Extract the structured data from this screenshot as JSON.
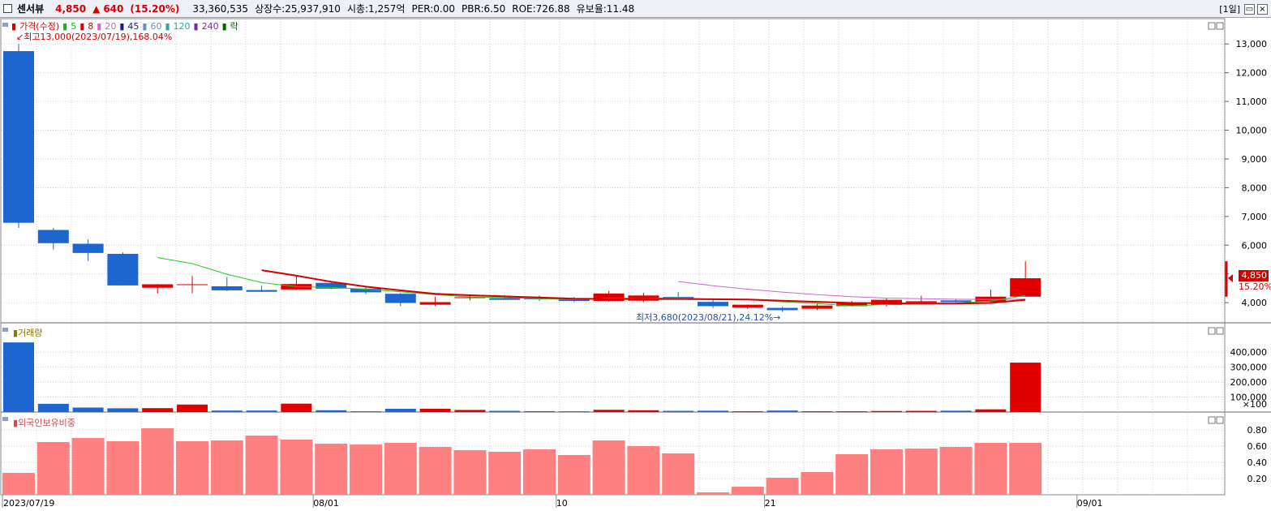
{
  "header": {
    "name": "센서뷰",
    "price": "4,850",
    "change_arrow": "▲",
    "change": "640",
    "change_pct": "(15.20%)",
    "volume": "33,360,535",
    "listed": "상장수:25,937,910",
    "mktcap": "시총:1,257억",
    "per": "PER:0.00",
    "pbr": "PBR:6.50",
    "roe": "ROE:726.88",
    "float": "유보율:11.48",
    "period": "[1일]"
  },
  "legend": [
    {
      "label": "가격(수정)",
      "color": "#d40000"
    },
    {
      "label": "5",
      "color": "#22aa22"
    },
    {
      "label": "8",
      "color": "#d40000"
    },
    {
      "label": "20",
      "color": "#cc66cc"
    },
    {
      "label": "45",
      "color": "#1a1a8a"
    },
    {
      "label": "60",
      "color": "#6a8acb"
    },
    {
      "label": "120",
      "color": "#2aa6a6"
    },
    {
      "label": "240",
      "color": "#7a2aa6"
    },
    {
      "label": "락",
      "color": "#006600"
    }
  ],
  "annotations": {
    "max": "최고13,000(2023/07/19),168.04%",
    "min": "최저3,680(2023/08/21),24.12%",
    "current_price": "4,850",
    "current_pct": "15.20%"
  },
  "panels": {
    "volume_title": "거래량",
    "foreign_title": "외국인보유비중"
  },
  "colors": {
    "up": "#e00000",
    "down": "#1d66cf",
    "foreign": "#ff8080",
    "ma5": "#22cc22",
    "ma8": "#d40000",
    "ma20": "#cc66cc"
  },
  "chart_data": {
    "type": "candlestick",
    "x_ticks": [
      {
        "i": 0,
        "label": "2023/07/19"
      },
      {
        "i": 9,
        "label": "08/01"
      },
      {
        "i": 16,
        "label": "10"
      },
      {
        "i": 22,
        "label": "21"
      },
      {
        "i": 31,
        "label": "09/01"
      }
    ],
    "price_axis": {
      "ticks": [
        4000,
        5000,
        6000,
        7000,
        8000,
        9000,
        10000,
        11000,
        12000,
        13000
      ],
      "labels": [
        "4,000",
        "5,000",
        "6,000",
        "7,000",
        "8,000",
        "9,000",
        "10,000",
        "11,000",
        "12,000",
        "13,000"
      ],
      "range": [
        3300,
        13400
      ]
    },
    "volume_axis": {
      "ticks": [
        100000,
        200000,
        300000,
        400000
      ],
      "labels": [
        "100,000",
        "200,000",
        "300,000",
        "400,000"
      ],
      "unit": "×100",
      "range": [
        0,
        520000
      ]
    },
    "foreign_axis": {
      "ticks": [
        0.2,
        0.4,
        0.6,
        0.8
      ],
      "labels": [
        "0.20",
        "0.40",
        "0.60",
        "0.80"
      ],
      "range": [
        0,
        1.0
      ]
    },
    "candles": [
      {
        "o": 12750,
        "h": 13000,
        "l": 6600,
        "c": 6780
      },
      {
        "o": 6530,
        "h": 6600,
        "l": 5850,
        "c": 6070
      },
      {
        "o": 6050,
        "h": 6200,
        "l": 5450,
        "c": 5730
      },
      {
        "o": 5700,
        "h": 5750,
        "l": 4600,
        "c": 4600
      },
      {
        "o": 4520,
        "h": 4650,
        "l": 4320,
        "c": 4640
      },
      {
        "o": 4640,
        "h": 4930,
        "l": 4330,
        "c": 4640
      },
      {
        "o": 4570,
        "h": 4890,
        "l": 4410,
        "c": 4430
      },
      {
        "o": 4440,
        "h": 4590,
        "l": 4370,
        "c": 4380
      },
      {
        "o": 4460,
        "h": 4960,
        "l": 4440,
        "c": 4650
      },
      {
        "o": 4690,
        "h": 4750,
        "l": 4470,
        "c": 4490
      },
      {
        "o": 4490,
        "h": 4560,
        "l": 4300,
        "c": 4360
      },
      {
        "o": 4310,
        "h": 4340,
        "l": 3880,
        "c": 3990
      },
      {
        "o": 3930,
        "h": 4210,
        "l": 3880,
        "c": 4020
      },
      {
        "o": 4160,
        "h": 4240,
        "l": 4080,
        "c": 4190
      },
      {
        "o": 4160,
        "h": 4270,
        "l": 4100,
        "c": 4100
      },
      {
        "o": 4170,
        "h": 4250,
        "l": 4060,
        "c": 4120
      },
      {
        "o": 4110,
        "h": 4200,
        "l": 4020,
        "c": 4060
      },
      {
        "o": 4060,
        "h": 4410,
        "l": 4040,
        "c": 4320
      },
      {
        "o": 4070,
        "h": 4350,
        "l": 4020,
        "c": 4250
      },
      {
        "o": 4200,
        "h": 4370,
        "l": 4150,
        "c": 4130
      },
      {
        "o": 4030,
        "h": 4110,
        "l": 3820,
        "c": 3880
      },
      {
        "o": 3830,
        "h": 3930,
        "l": 3780,
        "c": 3930
      },
      {
        "o": 3820,
        "h": 3850,
        "l": 3680,
        "c": 3740
      },
      {
        "o": 3790,
        "h": 3960,
        "l": 3740,
        "c": 3900
      },
      {
        "o": 3880,
        "h": 4060,
        "l": 3870,
        "c": 4010
      },
      {
        "o": 3920,
        "h": 4150,
        "l": 3860,
        "c": 4100
      },
      {
        "o": 4000,
        "h": 4240,
        "l": 3970,
        "c": 4050
      },
      {
        "o": 4080,
        "h": 4120,
        "l": 4010,
        "c": 4020
      },
      {
        "o": 4030,
        "h": 4460,
        "l": 4000,
        "c": 4210
      },
      {
        "o": 4210,
        "h": 5440,
        "l": 4210,
        "c": 4850
      }
    ],
    "ma5": [
      null,
      null,
      null,
      null,
      5570,
      5360,
      4990,
      4700,
      4560,
      4530,
      4470,
      4380,
      4280,
      4200,
      4180,
      4140,
      4110,
      4160,
      4150,
      4170,
      4120,
      4110,
      4030,
      3970,
      3890,
      3940,
      3960,
      3980,
      4060,
      4250
    ],
    "ma8": [
      null,
      null,
      null,
      null,
      null,
      null,
      null,
      5130,
      4940,
      4730,
      4560,
      4430,
      4310,
      4260,
      4220,
      4180,
      4140,
      4130,
      4130,
      4130,
      4120,
      4110,
      4070,
      4030,
      3990,
      3980,
      3970,
      3970,
      3990,
      4100
    ],
    "ma20": [
      null,
      null,
      null,
      null,
      null,
      null,
      null,
      null,
      null,
      null,
      null,
      null,
      null,
      null,
      null,
      null,
      null,
      null,
      null,
      4740,
      4590,
      4470,
      4370,
      4280,
      4210,
      4160,
      4140,
      4120,
      4110,
      4120
    ],
    "volume": [
      465000,
      55000,
      30000,
      25000,
      26000,
      50000,
      10000,
      10000,
      56000,
      12000,
      5000,
      22000,
      22000,
      14000,
      8000,
      6000,
      5000,
      15000,
      12000,
      8000,
      9000,
      5000,
      10000,
      5000,
      5000,
      7000,
      8000,
      9000,
      18000,
      330000
    ],
    "foreign": [
      0.27,
      0.65,
      0.7,
      0.66,
      0.82,
      0.66,
      0.67,
      0.73,
      0.68,
      0.63,
      0.62,
      0.64,
      0.59,
      0.55,
      0.53,
      0.56,
      0.49,
      0.67,
      0.6,
      0.51,
      0.03,
      0.1,
      0.21,
      0.28,
      0.5,
      0.56,
      0.57,
      0.59,
      0.64,
      0.64
    ]
  }
}
